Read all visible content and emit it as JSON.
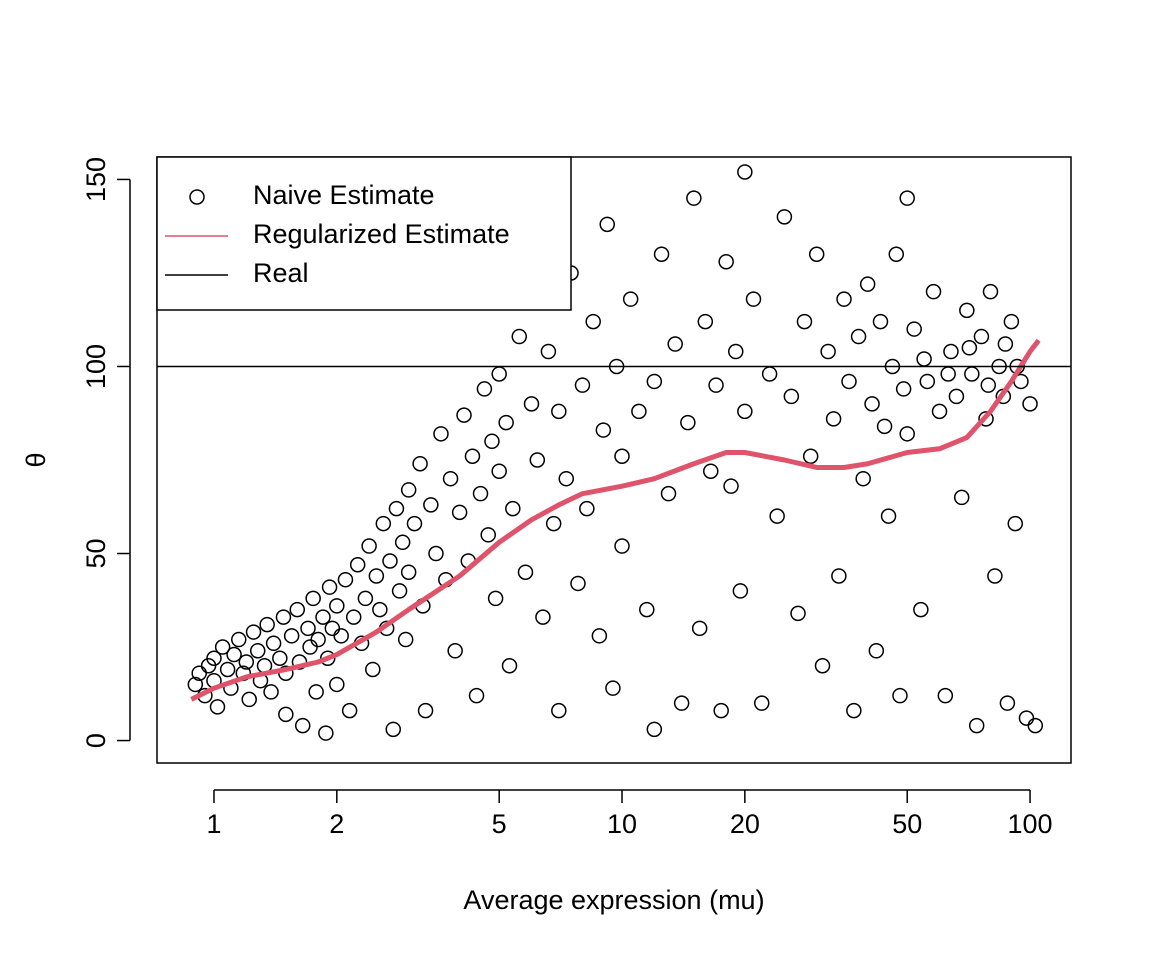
{
  "chart_data": {
    "type": "scatter",
    "xlabel": "Average expression (mu)",
    "ylabel": "θ",
    "xlog": true,
    "legend": "top-left",
    "xlim": [
      0.725,
      126
    ],
    "ylim": [
      -6,
      156
    ],
    "xticks": [
      1,
      2,
      5,
      10,
      20,
      50,
      100
    ],
    "yticks": [
      0,
      50,
      100,
      150
    ],
    "series": [
      {
        "name": "Naive Estimate",
        "type": "scatter",
        "color": "#000000",
        "x": [
          0.9,
          0.92,
          0.95,
          0.97,
          1.0,
          1.0,
          1.02,
          1.05,
          1.08,
          1.1,
          1.12,
          1.15,
          1.18,
          1.2,
          1.22,
          1.25,
          1.28,
          1.3,
          1.33,
          1.35,
          1.38,
          1.4,
          1.45,
          1.48,
          1.5,
          1.5,
          1.55,
          1.6,
          1.62,
          1.65,
          1.7,
          1.72,
          1.75,
          1.78,
          1.8,
          1.85,
          1.88,
          1.9,
          1.92,
          1.95,
          2.0,
          2.0,
          2.05,
          2.1,
          2.15,
          2.2,
          2.25,
          2.3,
          2.35,
          2.4,
          2.45,
          2.5,
          2.55,
          2.6,
          2.65,
          2.7,
          2.75,
          2.8,
          2.85,
          2.9,
          2.95,
          3.0,
          3.0,
          3.1,
          3.2,
          3.25,
          3.3,
          3.4,
          3.5,
          3.6,
          3.7,
          3.8,
          3.9,
          4.0,
          4.1,
          4.2,
          4.3,
          4.4,
          4.5,
          4.6,
          4.7,
          4.8,
          4.9,
          5.0,
          5.0,
          5.2,
          5.3,
          5.4,
          5.6,
          5.8,
          6.0,
          6.2,
          6.4,
          6.6,
          6.8,
          7.0,
          7.0,
          7.3,
          7.5,
          7.8,
          8.0,
          8.2,
          8.5,
          8.8,
          9.0,
          9.2,
          9.5,
          9.7,
          10,
          10,
          10.5,
          11,
          11.5,
          12,
          12,
          12.5,
          13,
          13.5,
          14,
          14.5,
          15,
          15.5,
          16,
          16.5,
          17,
          17.5,
          18,
          18.5,
          19,
          19.5,
          20,
          20,
          21,
          22,
          23,
          24,
          25,
          26,
          27,
          28,
          29,
          30,
          31,
          32,
          33,
          34,
          35,
          36,
          37,
          38,
          39,
          40,
          41,
          42,
          43,
          44,
          45,
          46,
          47,
          48,
          49,
          50,
          50,
          52,
          54,
          56,
          58,
          60,
          62,
          64,
          66,
          68,
          70,
          72,
          74,
          76,
          78,
          80,
          82,
          84,
          86,
          88,
          90,
          92,
          95,
          98,
          100,
          103,
          55,
          63,
          71,
          79,
          87,
          93
        ],
        "values": [
          15,
          18,
          12,
          20,
          22,
          16,
          9,
          25,
          19,
          14,
          23,
          27,
          18,
          21,
          11,
          29,
          24,
          16,
          20,
          31,
          13,
          26,
          22,
          33,
          18,
          7,
          28,
          35,
          21,
          4,
          30,
          25,
          38,
          13,
          27,
          33,
          2,
          22,
          41,
          30,
          36,
          15,
          28,
          43,
          8,
          33,
          47,
          26,
          38,
          52,
          19,
          44,
          35,
          58,
          30,
          48,
          3,
          62,
          40,
          53,
          27,
          67,
          45,
          58,
          74,
          36,
          8,
          63,
          50,
          82,
          43,
          70,
          24,
          61,
          87,
          48,
          76,
          12,
          66,
          94,
          55,
          80,
          38,
          72,
          98,
          85,
          20,
          62,
          108,
          45,
          90,
          75,
          33,
          104,
          58,
          8,
          88,
          70,
          125,
          42,
          95,
          62,
          112,
          28,
          83,
          138,
          14,
          100,
          76,
          52,
          118,
          88,
          35,
          96,
          3,
          130,
          66,
          106,
          10,
          85,
          145,
          30,
          112,
          72,
          95,
          8,
          128,
          68,
          104,
          40,
          88,
          152,
          118,
          10,
          98,
          60,
          140,
          92,
          34,
          112,
          76,
          130,
          20,
          104,
          86,
          44,
          118,
          96,
          8,
          108,
          70,
          122,
          90,
          24,
          112,
          84,
          60,
          100,
          130,
          12,
          94,
          145,
          82,
          110,
          35,
          96,
          120,
          88,
          12,
          104,
          92,
          65,
          115,
          98,
          4,
          108,
          86,
          120,
          44,
          100,
          92,
          10,
          112,
          58,
          96,
          6,
          90,
          4,
          102,
          98,
          105,
          95,
          106,
          100
        ]
      },
      {
        "name": "Regularized Estimate",
        "type": "line",
        "color": "#DF536B",
        "x": [
          0.88,
          1,
          1.2,
          1.5,
          1.8,
          2,
          2.5,
          3,
          4,
          5,
          6,
          7,
          8,
          10,
          12,
          15,
          18,
          20,
          25,
          30,
          35,
          40,
          50,
          60,
          70,
          80,
          90,
          100,
          105
        ],
        "values": [
          11,
          14,
          17,
          19,
          21,
          23,
          29,
          35,
          44,
          53,
          59,
          63,
          66,
          68,
          70,
          74,
          77,
          77,
          75,
          73,
          73,
          74,
          77,
          78,
          81,
          88,
          96,
          104,
          107
        ]
      },
      {
        "name": "Real",
        "type": "hline",
        "color": "#000000",
        "hline": 100
      }
    ]
  }
}
